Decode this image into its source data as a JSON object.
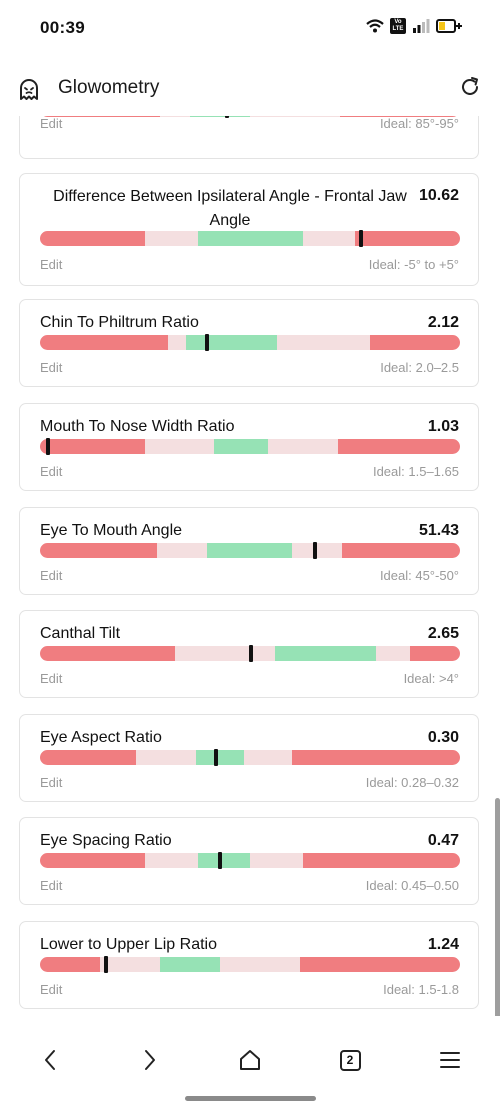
{
  "status": {
    "time": "00:39",
    "volte": "Vo LTE"
  },
  "app": {
    "title": "Glowometry"
  },
  "colors": {
    "red": "#f07d80",
    "pink": "#f4dfe0",
    "green": "#96e2b5",
    "marker": "#111111"
  },
  "cards": [
    {
      "title": "",
      "value": "",
      "edit": "Edit",
      "ideal": "Ideal: 85°-95°",
      "segments": [
        [
          "red",
          0,
          0.285
        ],
        [
          "pink",
          0.285,
          0.357
        ],
        [
          "green",
          0.357,
          0.5
        ],
        [
          "pink",
          0.5,
          0.714
        ],
        [
          "red",
          0.714,
          1
        ]
      ],
      "marker": 0.445
    },
    {
      "title": "Difference Between Ipsilateral Angle - Frontal Jaw Angle",
      "value": "10.62",
      "edit": "Edit",
      "ideal": "Ideal: -5° to +5°",
      "segments": [
        [
          "red",
          0,
          0.25
        ],
        [
          "pink",
          0.25,
          0.375
        ],
        [
          "green",
          0.375,
          0.625
        ],
        [
          "pink",
          0.625,
          0.75
        ],
        [
          "red",
          0.75,
          1
        ]
      ],
      "marker": 0.765
    },
    {
      "title": "Chin To Philtrum Ratio",
      "value": "2.12",
      "edit": "Edit",
      "ideal": "Ideal: 2.0–2.5",
      "segments": [
        [
          "red",
          0,
          0.305
        ],
        [
          "pink",
          0.305,
          0.348
        ],
        [
          "green",
          0.348,
          0.565
        ],
        [
          "pink",
          0.565,
          0.785
        ],
        [
          "red",
          0.785,
          1
        ]
      ],
      "marker": 0.398
    },
    {
      "title": "Mouth To Nose Width Ratio",
      "value": "1.03",
      "edit": "Edit",
      "ideal": "Ideal: 1.5–1.65",
      "segments": [
        [
          "red",
          0,
          0.25
        ],
        [
          "pink",
          0.25,
          0.415
        ],
        [
          "green",
          0.415,
          0.542
        ],
        [
          "pink",
          0.542,
          0.71
        ],
        [
          "red",
          0.71,
          1
        ]
      ],
      "marker": 0.02
    },
    {
      "title": "Eye To Mouth Angle",
      "value": "51.43",
      "edit": "Edit",
      "ideal": "Ideal: 45°-50°",
      "segments": [
        [
          "red",
          0,
          0.278
        ],
        [
          "pink",
          0.278,
          0.398
        ],
        [
          "green",
          0.398,
          0.6
        ],
        [
          "pink",
          0.6,
          0.72
        ],
        [
          "red",
          0.72,
          1
        ]
      ],
      "marker": 0.655
    },
    {
      "title": "Canthal Tilt",
      "value": "2.65",
      "edit": "Edit",
      "ideal": "Ideal: >4°",
      "segments": [
        [
          "red",
          0,
          0.322
        ],
        [
          "pink",
          0.322,
          0.56
        ],
        [
          "green",
          0.56,
          0.8
        ],
        [
          "pink",
          0.8,
          0.88
        ],
        [
          "red",
          0.88,
          1
        ]
      ],
      "marker": 0.502
    },
    {
      "title": "Eye Aspect Ratio",
      "value": "0.30",
      "edit": "Edit",
      "ideal": "Ideal: 0.28–0.32",
      "segments": [
        [
          "red",
          0,
          0.228
        ],
        [
          "pink",
          0.228,
          0.372
        ],
        [
          "green",
          0.372,
          0.485
        ],
        [
          "pink",
          0.485,
          0.6
        ],
        [
          "red",
          0.6,
          1
        ]
      ],
      "marker": 0.418
    },
    {
      "title": "Eye Spacing Ratio",
      "value": "0.47",
      "edit": "Edit",
      "ideal": "Ideal: 0.45–0.50",
      "segments": [
        [
          "red",
          0,
          0.25
        ],
        [
          "pink",
          0.25,
          0.375
        ],
        [
          "green",
          0.375,
          0.5
        ],
        [
          "pink",
          0.5,
          0.625
        ],
        [
          "red",
          0.625,
          1
        ]
      ],
      "marker": 0.428
    },
    {
      "title": "Lower to Upper Lip Ratio",
      "value": "1.24",
      "edit": "Edit",
      "ideal": "Ideal: 1.5-1.8",
      "segments": [
        [
          "red",
          0,
          0.143
        ],
        [
          "pink",
          0.143,
          0.285
        ],
        [
          "green",
          0.285,
          0.428
        ],
        [
          "pink",
          0.428,
          0.618
        ],
        [
          "red",
          0.618,
          1
        ]
      ],
      "marker": 0.157
    }
  ],
  "nav": {
    "tab_count": "2"
  }
}
